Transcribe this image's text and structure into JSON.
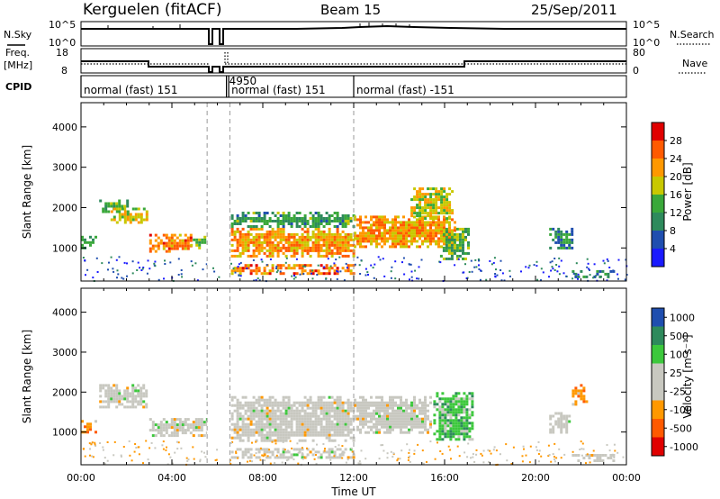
{
  "header": {
    "station": "Kerguelen (fitACF)",
    "beam": "Beam 15",
    "date": "25/Sep/2011"
  },
  "panels": {
    "nsky_label": "N.Sky",
    "nsearch_label": "N.Search",
    "freq_label_1": "Freq.",
    "freq_label_2": "[MHz]",
    "nave_label": "Nave",
    "cpid_label": "CPID",
    "nsky_ticks": [
      "10^5",
      "10^0"
    ],
    "nsearch_ticks": [
      "10^5",
      "10^0"
    ],
    "freq_ticks": [
      "18",
      "8"
    ],
    "nave_ticks": [
      "80",
      "0"
    ]
  },
  "cpid_segments": [
    {
      "start": 0.0,
      "label": "normal (fast) 151"
    },
    {
      "start": 6.4,
      "label": "4950"
    },
    {
      "start": 6.5,
      "label": "normal (fast) 151"
    },
    {
      "start": 12.0,
      "label": "normal (fast) -151"
    }
  ],
  "colors": {
    "power": [
      "#1a1aff",
      "#1f4eaf",
      "#2e8a5c",
      "#3aa83a",
      "#c8c800",
      "#ff9800",
      "#ff5a00",
      "#e00000"
    ],
    "velocity": [
      "#e00000",
      "#ff5a00",
      "#ff9800",
      "#c8c8c0",
      "#c8c8c0",
      "#3cc83c",
      "#2e8a5c",
      "#1f4eaf"
    ]
  },
  "chart_data": [
    {
      "type": "heatmap",
      "name": "power",
      "ylabel": "Slant Range [km]",
      "xlabel": "",
      "ylim": [
        180,
        4600
      ],
      "xlim": [
        0,
        24
      ],
      "yticks": [
        "1000",
        "2000",
        "3000",
        "4000"
      ],
      "colorbar_label": "Power [dB]",
      "colorbar_ticks": [
        "4",
        "8",
        "12",
        "16",
        "20",
        "24",
        "28"
      ],
      "colorbar_range": [
        0,
        30
      ],
      "data_gaps_hours": [
        [
          5.55,
          5.75
        ],
        [
          6.2,
          6.5
        ]
      ],
      "dashed_lines_hours": [
        5.55,
        6.55,
        12.0
      ],
      "echo_regions": [
        {
          "t0": 0.0,
          "t1": 0.6,
          "r0": 1000,
          "r1": 1300,
          "level": 12
        },
        {
          "t0": 0.8,
          "t1": 2.0,
          "r0": 1900,
          "r1": 2200,
          "level": 14
        },
        {
          "t0": 1.3,
          "t1": 2.9,
          "r0": 1600,
          "r1": 2000,
          "level": 18
        },
        {
          "t0": 3.0,
          "t1": 4.8,
          "r0": 900,
          "r1": 1350,
          "level": 24
        },
        {
          "t0": 4.8,
          "t1": 5.5,
          "r0": 1000,
          "r1": 1300,
          "level": 14
        },
        {
          "t0": 6.6,
          "t1": 12.0,
          "r0": 800,
          "r1": 1500,
          "level": 22
        },
        {
          "t0": 6.6,
          "t1": 12.0,
          "r0": 1500,
          "r1": 1900,
          "level": 12
        },
        {
          "t0": 6.6,
          "t1": 12.0,
          "r0": 380,
          "r1": 600,
          "level": 24
        },
        {
          "t0": 12.0,
          "t1": 16.5,
          "r0": 1000,
          "r1": 1800,
          "level": 22
        },
        {
          "t0": 14.5,
          "t1": 16.4,
          "r0": 1700,
          "r1": 2500,
          "level": 18
        },
        {
          "t0": 15.8,
          "t1": 17.0,
          "r0": 700,
          "r1": 1500,
          "level": 14
        },
        {
          "t0": 20.6,
          "t1": 21.6,
          "r0": 1000,
          "r1": 1500,
          "level": 10
        },
        {
          "t0": 21.6,
          "t1": 23.4,
          "r0": 300,
          "r1": 450,
          "level": 10
        }
      ]
    },
    {
      "type": "heatmap",
      "name": "velocity",
      "ylabel": "Slant Range [km]",
      "xlabel": "Time UT",
      "ylim": [
        180,
        4600
      ],
      "xlim": [
        0,
        24
      ],
      "yticks": [
        "1000",
        "2000",
        "3000",
        "4000"
      ],
      "xticks": [
        "00:00",
        "04:00",
        "08:00",
        "12:00",
        "16:00",
        "20:00",
        "00:00"
      ],
      "colorbar_label": "Velocity [m s⁻¹]",
      "colorbar_ticks": [
        "-1000",
        "-500",
        "-100",
        "-25",
        "25",
        "100",
        "500",
        "1000"
      ],
      "echo_regions": [
        {
          "t0": 0.0,
          "t1": 0.6,
          "r0": 1000,
          "r1": 1300,
          "class": "neg"
        },
        {
          "t0": 0.8,
          "t1": 2.9,
          "r0": 1600,
          "r1": 2200,
          "class": "zero"
        },
        {
          "t0": 3.0,
          "t1": 5.5,
          "r0": 900,
          "r1": 1350,
          "class": "zero"
        },
        {
          "t0": 6.6,
          "t1": 12.0,
          "r0": 800,
          "r1": 1900,
          "class": "zero"
        },
        {
          "t0": 6.6,
          "t1": 12.0,
          "r0": 380,
          "r1": 600,
          "class": "zero"
        },
        {
          "t0": 12.0,
          "t1": 15.4,
          "r0": 1000,
          "r1": 1900,
          "class": "zero"
        },
        {
          "t0": 15.5,
          "t1": 17.2,
          "r0": 800,
          "r1": 2000,
          "class": "pos"
        },
        {
          "t0": 20.6,
          "t1": 21.6,
          "r0": 1000,
          "r1": 1500,
          "class": "zero"
        },
        {
          "t0": 21.6,
          "t1": 22.2,
          "r0": 1700,
          "r1": 2200,
          "class": "neg"
        },
        {
          "t0": 21.6,
          "t1": 23.4,
          "r0": 300,
          "r1": 450,
          "class": "zero"
        }
      ]
    }
  ]
}
